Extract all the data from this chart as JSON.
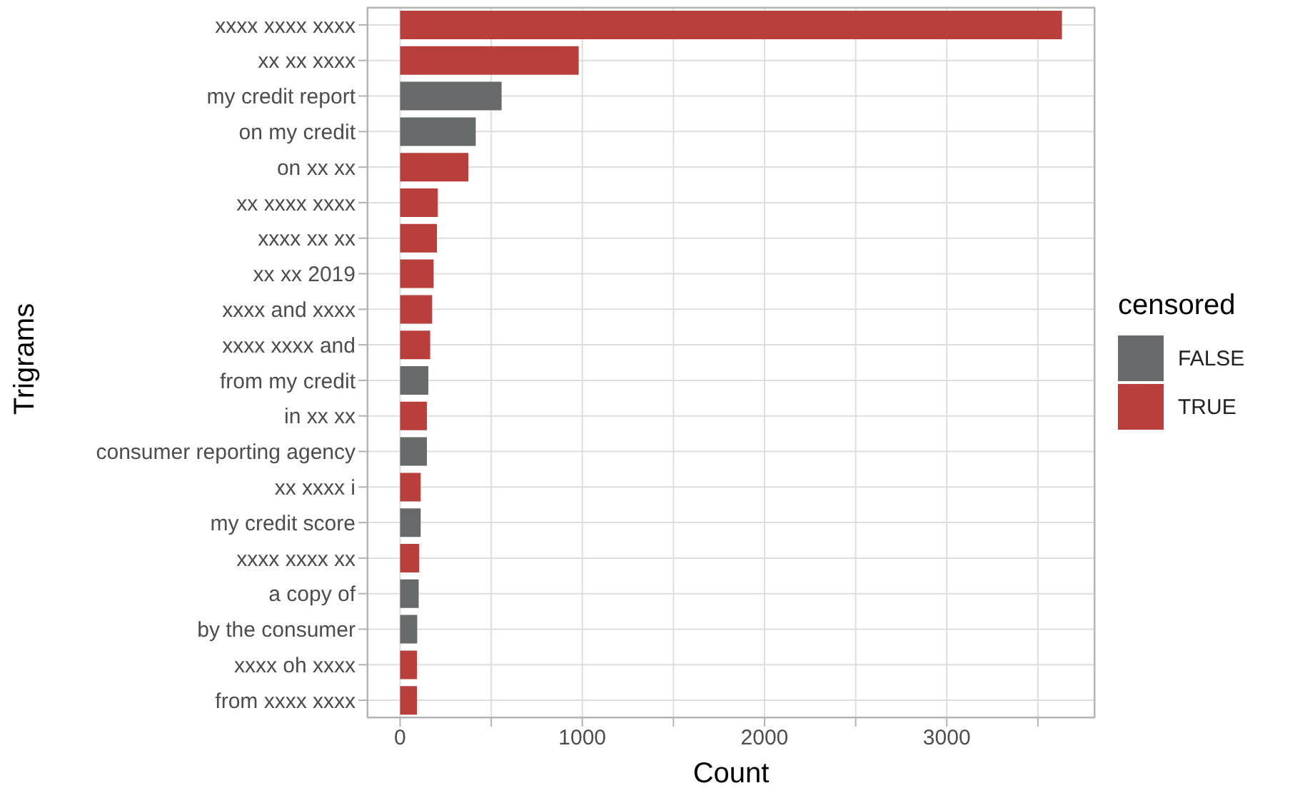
{
  "chart_data": {
    "type": "bar",
    "orientation": "horizontal",
    "stacked": true,
    "xlabel": "Count",
    "ylabel": "Trigrams",
    "legend_title": "censored",
    "legend": "right",
    "grid": true,
    "categories": [
      "xxxx xxxx xxxx",
      "xx xx xxxx",
      "my credit report",
      "on my credit",
      "on xx xx",
      "xx xxxx xxxx",
      "xxxx xx xx",
      "xx xx 2019",
      "xxxx and xxxx",
      "xxxx xxxx and",
      "from my credit",
      "in xx xx",
      "consumer reporting agency",
      "xx xxxx i",
      "my credit score",
      "xxxx xxxx xx",
      "a copy of",
      "by the consumer",
      "xxxx oh xxxx",
      "from xxxx xxxx"
    ],
    "series": [
      {
        "name": "FALSE",
        "color": "#676a6b",
        "values": [
          null,
          null,
          557,
          415,
          null,
          null,
          null,
          null,
          null,
          null,
          155,
          null,
          147,
          null,
          113,
          null,
          102,
          94,
          null,
          null
        ]
      },
      {
        "name": "TRUE",
        "color": "#b83f3b",
        "values": [
          3632,
          980,
          null,
          null,
          375,
          207,
          202,
          184,
          176,
          165,
          null,
          147,
          null,
          113,
          null,
          105,
          null,
          null,
          93,
          93
        ]
      }
    ],
    "xlim": [
      -182,
      3814
    ],
    "xticks": [
      0,
      {
        "value": 500,
        "label": null
      },
      1000,
      {
        "value": 1500,
        "label": null
      },
      2000,
      {
        "value": 2500,
        "label": null
      },
      3000,
      {
        "value": 3500,
        "label": null
      }
    ]
  }
}
